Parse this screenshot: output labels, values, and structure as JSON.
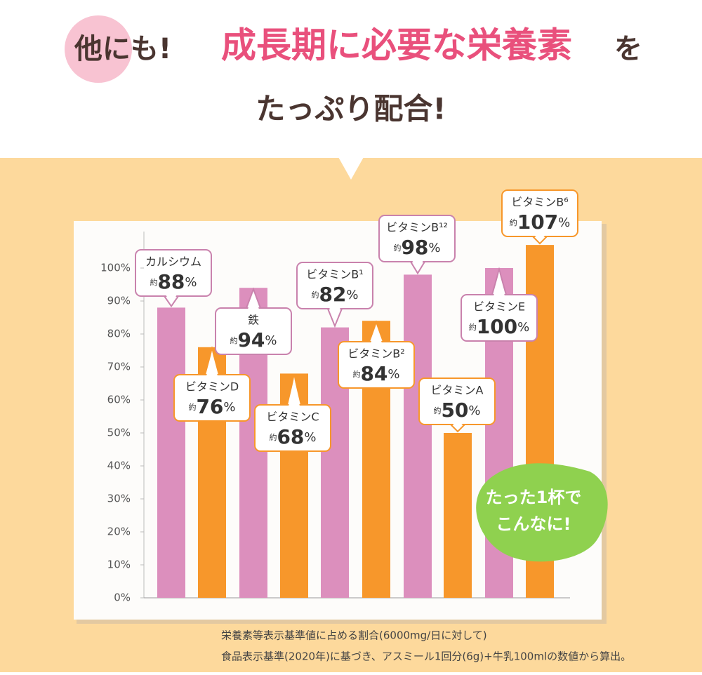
{
  "chart_data": {
    "type": "bar",
    "title": [
      "他にも!",
      "成長期に必要な栄養素",
      "を",
      "たっぷり配合!"
    ],
    "categories": [
      "カルシウム",
      "ビタミンD",
      "鉄",
      "ビタミンC",
      "ビタミンB¹",
      "ビタミンB²",
      "ビタミンB¹²",
      "ビタミンA",
      "ビタミンE",
      "ビタミンB⁶"
    ],
    "values": [
      88,
      76,
      94,
      68,
      82,
      84,
      98,
      50,
      100,
      107
    ],
    "value_labels": [
      "約88%",
      "約76%",
      "約94%",
      "約68%",
      "約82%",
      "約84%",
      "約98%",
      "約50%",
      "約100%",
      "約107%"
    ],
    "colors": [
      "#dc8fbd",
      "#f7972b",
      "#dc8fbd",
      "#f7972b",
      "#dc8fbd",
      "#f7972b",
      "#dc8fbd",
      "#f7972b",
      "#dc8fbd",
      "#f7972b"
    ],
    "ylim": [
      0,
      110
    ],
    "yticks": [
      {
        "value": 0,
        "label": "0%"
      },
      {
        "value": 10,
        "label": "10%"
      },
      {
        "value": 20,
        "label": "20%"
      },
      {
        "value": 30,
        "label": "30%"
      },
      {
        "value": 40,
        "label": "40%"
      },
      {
        "value": 50,
        "label": "50%"
      },
      {
        "value": 60,
        "label": "60%"
      },
      {
        "value": 70,
        "label": "70%"
      },
      {
        "value": 80,
        "label": "80%"
      },
      {
        "value": 90,
        "label": "90%"
      },
      {
        "value": 100,
        "label": "100%"
      }
    ],
    "annotations": [
      "たった1杯で",
      "こんなに!"
    ],
    "notes": [
      "栄養素等表示基準値に占める割合(6000mg/日に対して)",
      "食品表示基準(2020年)に基づき、アスミール1回分(6g)+牛乳100mlの数値から算出。"
    ]
  }
}
